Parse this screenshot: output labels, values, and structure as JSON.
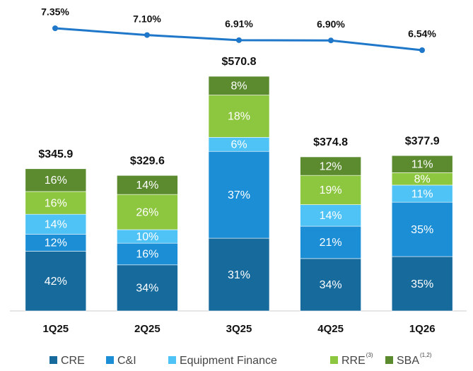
{
  "chart_data": {
    "type": "bar",
    "categories": [
      "1Q25",
      "2Q25",
      "3Q25",
      "4Q25",
      "1Q26"
    ],
    "totals": {
      "values": [
        345.9,
        329.6,
        570.8,
        374.8,
        377.9
      ],
      "value_labels": [
        "$345.9",
        "$329.6",
        "$570.8",
        "$374.8",
        "$377.9"
      ]
    },
    "series": [
      {
        "name": "CRE",
        "color": "#176a9c",
        "values": [
          42,
          34,
          31,
          34,
          35
        ],
        "value_labels": [
          "42%",
          "34%",
          "31%",
          "34%",
          "35%"
        ]
      },
      {
        "name": "C&I",
        "color": "#1b8ed6",
        "values": [
          12,
          16,
          37,
          21,
          35
        ],
        "value_labels": [
          "12%",
          "16%",
          "37%",
          "21%",
          "35%"
        ]
      },
      {
        "name": "Equipment Finance",
        "color": "#4fc3f5",
        "values": [
          14,
          10,
          6,
          14,
          11
        ],
        "value_labels": [
          "14%",
          "10%",
          "6%",
          "14%",
          "11%"
        ]
      },
      {
        "name": "RRE",
        "superscript": "(3)",
        "color": "#8dc63f",
        "values": [
          16,
          26,
          18,
          19,
          8
        ],
        "value_labels": [
          "16%",
          "26%",
          "18%",
          "19%",
          "8%"
        ]
      },
      {
        "name": "SBA",
        "superscript": "(1,2)",
        "color": "#5b8a2f",
        "values": [
          16,
          14,
          8,
          12,
          11
        ],
        "value_labels": [
          "16%",
          "14%",
          "8%",
          "12%",
          "11%"
        ]
      }
    ],
    "line": {
      "color": "#1f77c9",
      "values": [
        7.35,
        7.1,
        6.91,
        6.9,
        6.54
      ],
      "value_labels": [
        "7.35%",
        "7.10%",
        "6.91%",
        "6.90%",
        "6.54%"
      ]
    }
  }
}
